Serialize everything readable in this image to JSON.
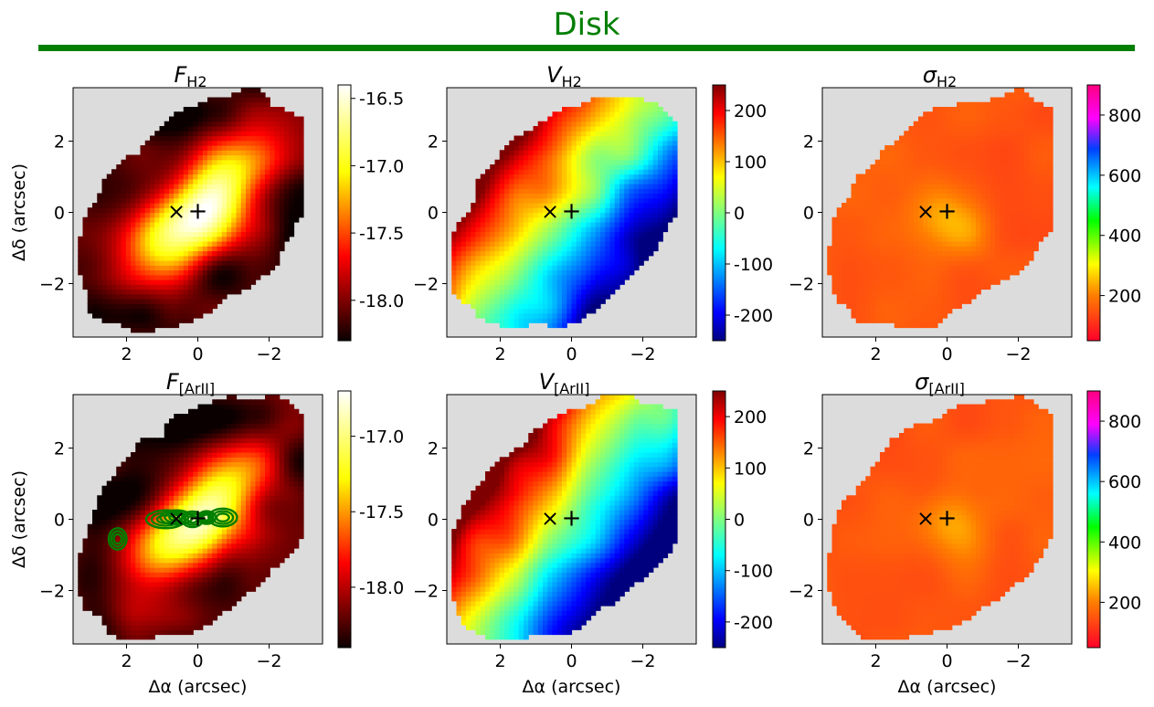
{
  "figure": {
    "title": "Disk",
    "title_color": "#007f00",
    "rule_color": "#007f00",
    "axes_background": "#dcdcdc",
    "xlabel": "Δα (arcsec)",
    "ylabel": "Δδ (arcsec)",
    "marker_x": "×",
    "marker_plus": "+"
  },
  "chart_data": [
    {
      "type": "heatmap",
      "panel": "flux-h2",
      "title_main": "F",
      "title_sub": "H2",
      "xlim": [
        3.5,
        -3.5
      ],
      "ylim": [
        -3.5,
        3.5
      ],
      "xticks": [
        2,
        0,
        -2
      ],
      "yticks": [
        2,
        0,
        -2
      ],
      "colormap": "hot",
      "colorbar_range": [
        -18.3,
        -16.4
      ],
      "colorbar_ticks": [
        -16.5,
        -17.0,
        -17.5,
        -18.0
      ],
      "colorbar_labels": [
        "-16.5",
        "-17.0",
        "-17.5",
        "-18.0"
      ],
      "markers": [
        {
          "x": 0.6,
          "y": 0,
          "symbol": "x"
        },
        {
          "x": 0,
          "y": 0,
          "symbol": "+"
        }
      ]
    },
    {
      "type": "heatmap",
      "panel": "velocity-h2",
      "title_main": "V",
      "title_sub": "H2",
      "xlim": [
        3.5,
        -3.5
      ],
      "ylim": [
        -3.5,
        3.5
      ],
      "xticks": [
        2,
        0,
        -2
      ],
      "yticks": [
        2,
        0,
        -2
      ],
      "colormap": "jet",
      "colorbar_range": [
        -250,
        250
      ],
      "colorbar_ticks": [
        200,
        100,
        0,
        -100,
        -200
      ],
      "colorbar_labels": [
        "200",
        "100",
        "0",
        "-100",
        "-200"
      ],
      "markers": [
        {
          "x": 0.6,
          "y": 0,
          "symbol": "x"
        },
        {
          "x": 0,
          "y": 0,
          "symbol": "+"
        }
      ]
    },
    {
      "type": "heatmap",
      "panel": "sigma-h2",
      "title_main": "σ",
      "title_sub": "H2",
      "xlim": [
        3.5,
        -3.5
      ],
      "ylim": [
        -3.5,
        3.5
      ],
      "xticks": [
        2,
        0,
        -2
      ],
      "yticks": [
        2,
        0,
        -2
      ],
      "colormap": "gist_rainbow_r",
      "colorbar_range": [
        50,
        900
      ],
      "colorbar_ticks": [
        800,
        600,
        400,
        200
      ],
      "colorbar_labels": [
        "800",
        "600",
        "400",
        "200"
      ],
      "markers": [
        {
          "x": 0.6,
          "y": 0,
          "symbol": "x"
        },
        {
          "x": 0,
          "y": 0,
          "symbol": "+"
        }
      ]
    },
    {
      "type": "heatmap",
      "panel": "flux-arii",
      "title_main": "F",
      "title_sub": "[ArII]",
      "xlim": [
        3.5,
        -3.5
      ],
      "ylim": [
        -3.5,
        3.5
      ],
      "xticks": [
        2,
        0,
        -2
      ],
      "yticks": [
        2,
        0,
        -2
      ],
      "colormap": "hot",
      "colorbar_range": [
        -18.4,
        -16.7
      ],
      "colorbar_ticks": [
        -17.0,
        -17.5,
        -18.0
      ],
      "colorbar_labels": [
        "-17.0",
        "-17.5",
        "-18.0"
      ],
      "contours": true,
      "contour_color": "#007f00",
      "markers": [
        {
          "x": 0.6,
          "y": 0,
          "symbol": "x"
        },
        {
          "x": 0,
          "y": 0,
          "symbol": "+"
        }
      ]
    },
    {
      "type": "heatmap",
      "panel": "velocity-arii",
      "title_main": "V",
      "title_sub": "[ArII]",
      "xlim": [
        3.5,
        -3.5
      ],
      "ylim": [
        -3.5,
        3.5
      ],
      "xticks": [
        2,
        0,
        -2
      ],
      "yticks": [
        2,
        0,
        -2
      ],
      "colormap": "jet",
      "colorbar_range": [
        -250,
        250
      ],
      "colorbar_ticks": [
        200,
        100,
        0,
        -100,
        -200
      ],
      "colorbar_labels": [
        "200",
        "100",
        "0",
        "-100",
        "-200"
      ],
      "markers": [
        {
          "x": 0.6,
          "y": 0,
          "symbol": "x"
        },
        {
          "x": 0,
          "y": 0,
          "symbol": "+"
        }
      ]
    },
    {
      "type": "heatmap",
      "panel": "sigma-arii",
      "title_main": "σ",
      "title_sub": "[ArII]",
      "xlim": [
        3.5,
        -3.5
      ],
      "ylim": [
        -3.5,
        3.5
      ],
      "xticks": [
        2,
        0,
        -2
      ],
      "yticks": [
        2,
        0,
        -2
      ],
      "colormap": "gist_rainbow_r",
      "colorbar_range": [
        50,
        900
      ],
      "colorbar_ticks": [
        800,
        600,
        400,
        200
      ],
      "colorbar_labels": [
        "800",
        "600",
        "400",
        "200"
      ],
      "markers": [
        {
          "x": 0.6,
          "y": 0,
          "symbol": "x"
        },
        {
          "x": 0,
          "y": 0,
          "symbol": "+"
        }
      ]
    }
  ]
}
